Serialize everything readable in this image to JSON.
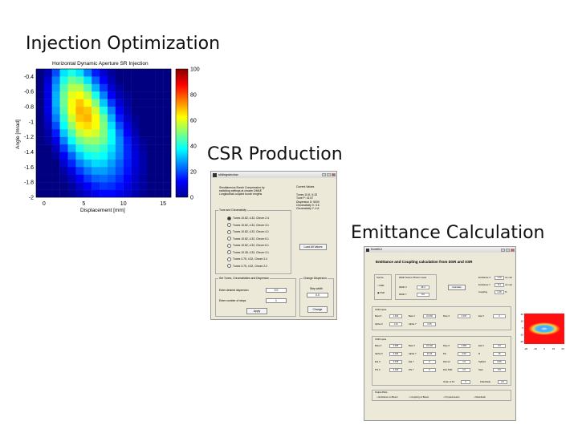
{
  "headings": {
    "injection": "Injection Optimization",
    "csr": "CSR Production",
    "emittance": "Emittance Calculation"
  },
  "chart_data": {
    "type": "heatmap",
    "title": "Horizontal Dynamic Aperture SR Injection",
    "xlabel": "Displacement [mm]",
    "ylabel": "Angle [mrad]",
    "x_ticks": [
      "0",
      "5",
      "10",
      "15"
    ],
    "y_ticks": [
      "-0.4",
      "-0.6",
      "-0.8",
      "-1",
      "-1.2",
      "-1.4",
      "-1.6",
      "-1.8",
      "-2"
    ],
    "colorbar_ticks": [
      "0",
      "20",
      "40",
      "60",
      "80",
      "100"
    ],
    "xlim": [
      -1,
      16
    ],
    "ylim": [
      -2,
      -0.3
    ],
    "zlim": [
      0,
      100
    ],
    "colormap": "jet",
    "grid_values": [
      [
        0,
        5,
        20,
        35,
        40,
        35,
        25,
        15,
        8,
        3,
        0,
        0,
        0,
        0,
        0,
        0,
        0
      ],
      [
        0,
        8,
        25,
        40,
        48,
        45,
        35,
        22,
        12,
        5,
        0,
        0,
        0,
        0,
        0,
        0,
        0
      ],
      [
        0,
        10,
        28,
        45,
        55,
        55,
        45,
        30,
        18,
        8,
        3,
        0,
        0,
        0,
        0,
        0,
        0
      ],
      [
        0,
        10,
        30,
        48,
        60,
        62,
        55,
        40,
        25,
        12,
        5,
        2,
        0,
        0,
        0,
        0,
        0
      ],
      [
        0,
        10,
        30,
        48,
        62,
        68,
        62,
        50,
        32,
        18,
        8,
        3,
        0,
        0,
        0,
        0,
        0
      ],
      [
        0,
        10,
        28,
        46,
        62,
        70,
        68,
        58,
        40,
        25,
        12,
        5,
        0,
        0,
        0,
        0,
        0
      ],
      [
        0,
        8,
        25,
        42,
        58,
        68,
        70,
        62,
        48,
        30,
        15,
        7,
        2,
        0,
        0,
        0,
        0
      ],
      [
        0,
        6,
        20,
        38,
        52,
        64,
        66,
        62,
        50,
        35,
        20,
        10,
        3,
        0,
        0,
        0,
        0
      ],
      [
        0,
        4,
        15,
        32,
        45,
        56,
        60,
        58,
        50,
        38,
        24,
        12,
        5,
        0,
        0,
        0,
        0
      ],
      [
        0,
        3,
        10,
        25,
        38,
        48,
        52,
        52,
        48,
        38,
        26,
        15,
        7,
        2,
        0,
        0,
        0
      ],
      [
        0,
        0,
        6,
        18,
        30,
        40,
        45,
        46,
        42,
        35,
        26,
        16,
        8,
        3,
        0,
        0,
        0
      ],
      [
        0,
        0,
        3,
        12,
        22,
        32,
        38,
        40,
        38,
        32,
        25,
        16,
        9,
        4,
        0,
        0,
        0
      ],
      [
        0,
        0,
        0,
        8,
        16,
        25,
        30,
        34,
        33,
        28,
        22,
        15,
        9,
        4,
        0,
        0,
        0
      ],
      [
        0,
        0,
        0,
        4,
        10,
        18,
        24,
        28,
        28,
        25,
        20,
        14,
        8,
        4,
        0,
        0,
        0
      ],
      [
        0,
        0,
        0,
        2,
        6,
        12,
        18,
        22,
        23,
        21,
        17,
        12,
        7,
        3,
        0,
        0,
        0
      ],
      [
        0,
        0,
        0,
        0,
        3,
        8,
        12,
        16,
        18,
        17,
        14,
        10,
        6,
        3,
        0,
        0,
        0
      ],
      [
        0,
        0,
        0,
        0,
        2,
        5,
        8,
        11,
        13,
        13,
        11,
        8,
        5,
        2,
        0,
        0,
        0
      ]
    ]
  },
  "csr_window": {
    "title": "slidingwindow",
    "description": [
      "Simultaneous Bunch Compression by",
      "switching settings at chosen DMAE",
      "Longitudinal coupled bunch lengths"
    ],
    "current_values": {
      "title": "Current Values",
      "lines": [
        "Tunes 10.8 / 4.32",
        "Tune P: 41.57",
        "Dispersion D: 5000",
        "Chromaticity X: 3.6",
        "Chromaticity Y: 4.6"
      ]
    },
    "tunes_group": {
      "title": "Tune and Chromaticity",
      "options": [
        "Tunes 10.82, 4.32, Chrom 2.4",
        "Tunes 10.82, 4.32, Chrom 3.1",
        "Tunes 10.82, 4.32, Chrom 4.1",
        "Tunes 10.82, 4.32, Chrom 5.1",
        "Tunes 10.82, 4.32, Chrom 6.1",
        "Tunes 10.35, 4.32, Chrom 3.1",
        "Tunes 3.75, 4.32, Chrom 2.4",
        "Tunes 3.75, 4.32, Chrom 2.2"
      ],
      "selected": 0
    },
    "load_button": "Load All Values",
    "set_group": {
      "title": "Set Tunes, Chromaticities and Dispersion",
      "rows": [
        {
          "label": "Enter desired dispersion",
          "value": "0.0"
        },
        {
          "label": "Enter number of steps",
          "value": "1"
        }
      ],
      "apply": "Apply"
    },
    "charge_group": {
      "title": "Change Dispersion",
      "label": "Step width",
      "value": "0.0",
      "button": "Change"
    }
  },
  "emit_window": {
    "title": "EmittGUI",
    "heading": "Emittance and Coupling calculation from DSR and XSR",
    "source": {
      "title": "Source",
      "options": [
        "DSR",
        "XSR"
      ]
    },
    "width_group": {
      "title": "Width fixed in Photon meas",
      "rows": [
        {
          "label": "Width X",
          "value": "48.4"
        },
        {
          "label": "Width Y",
          "value": "8.0"
        }
      ]
    },
    "calc_button": "Calculate",
    "results": [
      {
        "label": "Emittance X",
        "value": "1.70",
        "unit": "nm rad"
      },
      {
        "label": "Emittance Y",
        "value": "8.1",
        "unit": "nm rad"
      },
      {
        "label": "Coupling",
        "value": "0.48",
        "unit": "%"
      }
    ],
    "csr_inputs": {
      "title": "CSR Inputs",
      "rows": [
        [
          "Beta X",
          "1.622",
          "Beta Y",
          "22.402",
          "Disp X",
          "0.047",
          "Eta X",
          "0"
        ],
        [
          "Alpha X",
          "1.23",
          "Alpha Y",
          "0.35",
          "",
          "",
          "",
          ""
        ]
      ]
    },
    "xsr_inputs": {
      "title": "XSR Inputs",
      "rows": [
        [
          "Beta X",
          "0.925",
          "Beta Y",
          "22.102",
          "Disp X",
          "0.054",
          "Eta X",
          "0.0"
        ],
        [
          "Alpha X",
          "0.034",
          "Alpha Y",
          "13.13",
          "Pin",
          "2.00",
          "R",
          "16"
        ],
        [
          "Eta X",
          "0.075",
          "Eta Y",
          "0",
          "Dist tot",
          "1.5",
          "SpMod",
          "0.05"
        ],
        [
          "Phi X",
          "4.100",
          "Phi Y",
          "0",
          "Dist XSR",
          "1.5",
          "Spot",
          "0.5"
        ]
      ],
      "extra": [
        "Order of Fit",
        "2",
        "Filterblade",
        "2.0"
      ]
    },
    "output": {
      "title": "Output Plots",
      "options": [
        "Emittance vs Beam",
        "Coupling vs Beam",
        "Fit parameters",
        "Residuals"
      ]
    }
  },
  "beam_plot": {
    "y_ticks": [
      "20",
      "10",
      "0",
      "-10",
      "-20"
    ],
    "x_ticks": [
      "-20",
      "-10",
      "0",
      "10",
      "20"
    ]
  }
}
